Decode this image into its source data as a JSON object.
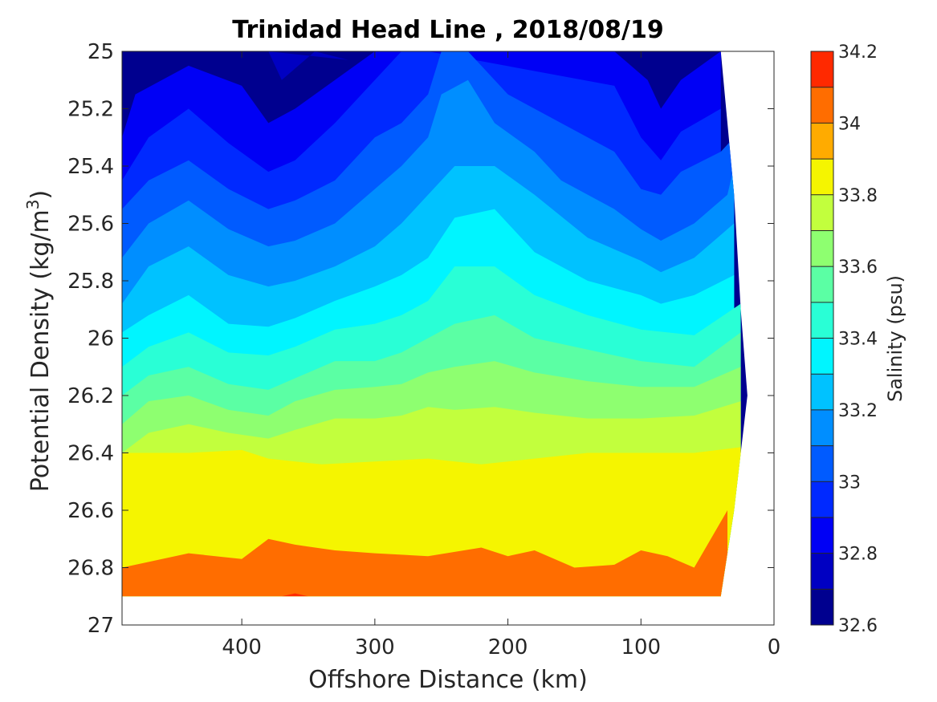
{
  "chart_data": {
    "type": "heatmap",
    "title": "Trinidad Head Line , 2018/08/19",
    "xlabel": "Offshore Distance (km)",
    "ylabel_main": "Potential Density (kg/m",
    "ylabel_sup": "3",
    "ylabel_close": ")",
    "colorbar_label": "Salinity (psu)",
    "xlim": [
      490,
      0
    ],
    "x_reversed": true,
    "ylim": [
      25,
      27
    ],
    "y_reversed": true,
    "xticks": [
      400,
      300,
      200,
      100,
      0
    ],
    "yticks": [
      "25",
      "25.2",
      "25.4",
      "25.6",
      "25.8",
      "26",
      "26.2",
      "26.4",
      "26.6",
      "26.8",
      "27"
    ],
    "clim": [
      32.6,
      34.2
    ],
    "cticks": [
      "32.6",
      "32.8",
      "33",
      "33.2",
      "33.4",
      "33.6",
      "33.8",
      "34",
      "34.2"
    ],
    "levels": [
      32.6,
      32.7,
      32.8,
      32.9,
      33.0,
      33.1,
      33.2,
      33.3,
      33.4,
      33.5,
      33.6,
      33.7,
      33.8,
      33.9,
      34.0,
      34.1,
      34.2
    ],
    "colormap": [
      "#00008f",
      "#0000c2",
      "#0000f5",
      "#0029ff",
      "#005bff",
      "#008eff",
      "#00c2ff",
      "#00f5ff",
      "#29ffd6",
      "#5bffa4",
      "#8eff70",
      "#c2ff3d",
      "#f5f500",
      "#ffab00",
      "#ff6d00",
      "#ff2900",
      "#e60000",
      "#b30000"
    ],
    "grid": false,
    "contours": [
      {
        "level": 32.7,
        "x": [
          380,
          370,
          345,
          320
        ],
        "y": [
          25.0,
          25.1,
          25.0,
          25.03
        ]
      },
      {
        "level": 32.8,
        "x": [
          490,
          480,
          440,
          400,
          380,
          360,
          330,
          300,
          120,
          95,
          85,
          70,
          40
        ],
        "y": [
          25.3,
          25.15,
          25.05,
          25.12,
          25.25,
          25.2,
          25.1,
          25.0,
          25.0,
          25.1,
          25.2,
          25.1,
          25.0
        ]
      },
      {
        "level": 32.9,
        "x": [
          490,
          470,
          440,
          410,
          380,
          360,
          330,
          300,
          280,
          260,
          120,
          100,
          85,
          70,
          40
        ],
        "y": [
          25.45,
          25.3,
          25.2,
          25.32,
          25.42,
          25.38,
          25.25,
          25.1,
          25.0,
          25.0,
          25.12,
          25.3,
          25.38,
          25.28,
          25.2
        ]
      },
      {
        "level": 33.0,
        "x": [
          490,
          470,
          440,
          410,
          380,
          360,
          330,
          300,
          280,
          260,
          250,
          230,
          200,
          160,
          120,
          100,
          85,
          70,
          40,
          30
        ],
        "y": [
          25.55,
          25.45,
          25.38,
          25.48,
          25.55,
          25.52,
          25.45,
          25.3,
          25.25,
          25.15,
          25.0,
          25.0,
          25.15,
          25.25,
          25.35,
          25.48,
          25.5,
          25.42,
          25.35,
          25.3
        ]
      },
      {
        "level": 33.1,
        "x": [
          490,
          470,
          440,
          410,
          380,
          360,
          330,
          300,
          280,
          260,
          250,
          230,
          210,
          180,
          160,
          120,
          100,
          85,
          60,
          35,
          30
        ],
        "y": [
          25.72,
          25.6,
          25.52,
          25.62,
          25.68,
          25.66,
          25.6,
          25.48,
          25.4,
          25.3,
          25.15,
          25.1,
          25.25,
          25.35,
          25.45,
          25.55,
          25.62,
          25.66,
          25.6,
          25.5,
          25.4
        ]
      },
      {
        "level": 33.2,
        "x": [
          490,
          470,
          440,
          410,
          380,
          360,
          330,
          300,
          280,
          260,
          240,
          210,
          180,
          140,
          100,
          85,
          60,
          35,
          30
        ],
        "y": [
          25.88,
          25.75,
          25.68,
          25.78,
          25.82,
          25.8,
          25.75,
          25.68,
          25.6,
          25.5,
          25.4,
          25.4,
          25.5,
          25.65,
          25.73,
          25.77,
          25.72,
          25.62,
          25.6
        ]
      },
      {
        "level": 33.3,
        "x": [
          490,
          470,
          440,
          410,
          380,
          360,
          330,
          300,
          280,
          260,
          240,
          210,
          180,
          140,
          100,
          85,
          60,
          30
        ],
        "y": [
          25.98,
          25.92,
          25.85,
          25.95,
          25.96,
          25.93,
          25.87,
          25.82,
          25.78,
          25.72,
          25.58,
          25.55,
          25.7,
          25.8,
          25.85,
          25.88,
          25.85,
          25.78
        ]
      },
      {
        "level": 33.4,
        "x": [
          490,
          470,
          440,
          410,
          380,
          360,
          330,
          300,
          280,
          260,
          240,
          210,
          180,
          140,
          100,
          60,
          25
        ],
        "y": [
          26.1,
          26.03,
          25.98,
          26.05,
          26.06,
          26.03,
          25.97,
          25.95,
          25.92,
          25.87,
          25.75,
          25.75,
          25.85,
          25.92,
          25.97,
          25.99,
          25.88
        ]
      },
      {
        "level": 33.5,
        "x": [
          490,
          470,
          440,
          410,
          380,
          360,
          330,
          300,
          280,
          260,
          240,
          210,
          180,
          140,
          100,
          60,
          25
        ],
        "y": [
          26.2,
          26.13,
          26.1,
          26.16,
          26.18,
          26.14,
          26.08,
          26.08,
          26.05,
          26.0,
          25.95,
          25.92,
          26.0,
          26.04,
          26.08,
          26.1,
          25.98
        ]
      },
      {
        "level": 33.6,
        "x": [
          490,
          470,
          440,
          410,
          380,
          360,
          330,
          300,
          280,
          260,
          240,
          210,
          180,
          140,
          100,
          60,
          25
        ],
        "y": [
          26.3,
          26.22,
          26.2,
          26.25,
          26.27,
          26.22,
          26.18,
          26.17,
          26.16,
          26.12,
          26.1,
          26.08,
          26.12,
          26.15,
          26.17,
          26.17,
          26.1
        ]
      },
      {
        "level": 33.7,
        "x": [
          490,
          470,
          440,
          410,
          380,
          360,
          330,
          300,
          280,
          260,
          240,
          210,
          180,
          140,
          100,
          60,
          25
        ],
        "y": [
          26.4,
          26.33,
          26.3,
          26.33,
          26.35,
          26.32,
          26.28,
          26.28,
          26.27,
          26.24,
          26.25,
          26.24,
          26.26,
          26.28,
          26.28,
          26.27,
          26.22
        ]
      },
      {
        "level": 33.8,
        "x": [
          490,
          440,
          400,
          380,
          340,
          300,
          260,
          220,
          180,
          140,
          100,
          60,
          25
        ],
        "y": [
          26.4,
          26.4,
          26.39,
          26.42,
          26.44,
          26.43,
          26.42,
          26.44,
          26.42,
          26.4,
          26.4,
          26.4,
          26.38
        ]
      },
      {
        "level": 34.0,
        "x": [
          490,
          470,
          440,
          400,
          380,
          360,
          330,
          300,
          260,
          220,
          200,
          180,
          150,
          120,
          100,
          80,
          60,
          35
        ],
        "y": [
          26.8,
          26.78,
          26.75,
          26.77,
          26.7,
          26.72,
          26.74,
          26.75,
          26.76,
          26.73,
          26.76,
          26.74,
          26.8,
          26.79,
          26.74,
          26.76,
          26.8,
          26.6
        ]
      },
      {
        "level": 34.1,
        "x": [
          370,
          360,
          350
        ],
        "y": [
          26.9,
          26.89,
          26.9
        ]
      }
    ],
    "data_region": {
      "x": [
        490,
        40,
        30,
        25,
        20,
        25,
        30,
        40,
        490
      ],
      "y": [
        25.0,
        25.0,
        25.5,
        25.9,
        26.2,
        26.4,
        26.6,
        26.9,
        26.9
      ]
    }
  }
}
